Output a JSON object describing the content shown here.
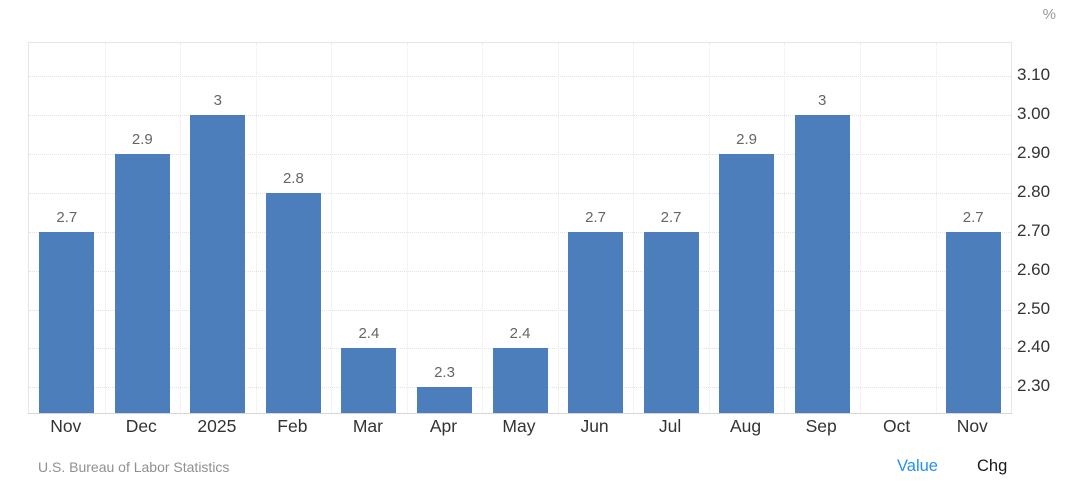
{
  "footer": {
    "source": "U.S. Bureau of Labor Statistics",
    "tabs": [
      {
        "label": "Value",
        "active": true
      },
      {
        "label": "Chg",
        "active": false
      }
    ]
  },
  "colors": {
    "bar": "#4d7ebc",
    "grid": "#e4e4e4",
    "axis_label": "#333333",
    "data_label": "#666666",
    "unit_label": "#999999",
    "source_text": "#909090",
    "active_tab": "#2590f2",
    "inactive_tab": "#1a1a1a"
  },
  "chart_data": {
    "type": "bar",
    "title": "",
    "xlabel": "",
    "ylabel": "%",
    "categories": [
      "Nov",
      "Dec",
      "2025",
      "Feb",
      "Mar",
      "Apr",
      "May",
      "Jun",
      "Jul",
      "Aug",
      "Sep",
      "Oct",
      "Nov"
    ],
    "values": [
      2.7,
      2.9,
      3,
      2.8,
      2.4,
      2.3,
      2.4,
      2.7,
      2.7,
      2.9,
      3,
      null,
      2.7
    ],
    "data_labels": [
      "2.7",
      "2.9",
      "3",
      "2.8",
      "2.4",
      "2.3",
      "2.4",
      "2.7",
      "2.7",
      "2.9",
      "3",
      "",
      "2.7"
    ],
    "ytick_values": [
      2.3,
      2.4,
      2.5,
      2.6,
      2.7,
      2.8,
      2.9,
      3.0,
      3.1
    ],
    "ytick_labels": [
      "2.30",
      "2.40",
      "2.50",
      "2.60",
      "2.70",
      "2.80",
      "2.90",
      "3.00",
      "3.10"
    ],
    "ylim": [
      2.234,
      3.185
    ],
    "grid": true,
    "legend": "none",
    "yaxis_side": "right",
    "missing_categories": [
      "Oct"
    ]
  }
}
